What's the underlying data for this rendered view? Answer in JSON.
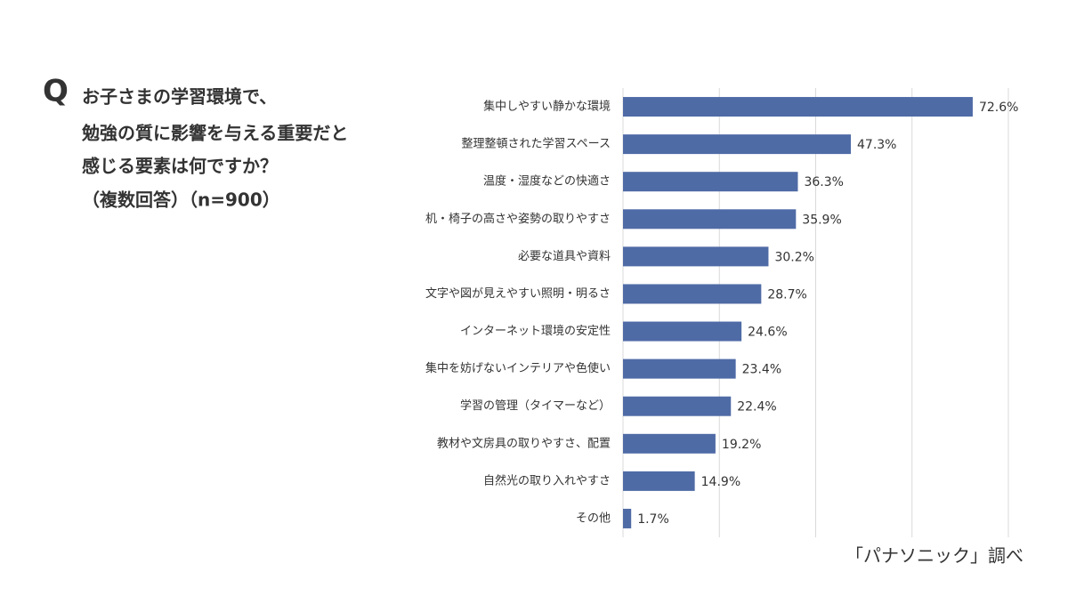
{
  "chart_data": {
    "type": "bar",
    "orientation": "horizontal",
    "question_mark": "Q",
    "title": [
      "お子さまの学習環境で、",
      "勉強の質に影響を与える重要だと",
      "感じる要素は何ですか？",
      "（複数回答）（n=900）"
    ],
    "source": "「パナソニック」調べ",
    "categories": [
      "集中しやすい静かな環境",
      "整理整頓された学習スペース",
      "温度・湿度などの快適さ",
      "机・椅子の高さや姿勢の取りやすさ",
      "必要な道具や資料",
      "文字や図が見えやすい照明・明るさ",
      "インターネット環境の安定性",
      "集中を妨げないインテリアや色使い",
      "学習の管理（タイマーなど）",
      "教材や文房具の取りやすさ、配置",
      "自然光の取り入れやすさ",
      "その他"
    ],
    "values": [
      72.6,
      47.3,
      36.3,
      35.9,
      30.2,
      28.7,
      24.6,
      23.4,
      22.4,
      19.2,
      14.9,
      1.7
    ],
    "value_labels": [
      "72.6%",
      "47.3%",
      "36.3%",
      "35.9%",
      "30.2%",
      "28.7%",
      "24.6%",
      "23.4%",
      "22.4%",
      "19.2%",
      "14.9%",
      "1.7%"
    ],
    "color": "#4f6ba6",
    "xlim": [
      0,
      80
    ],
    "xticks": [
      0,
      20,
      40,
      60,
      80
    ],
    "grid": true
  }
}
